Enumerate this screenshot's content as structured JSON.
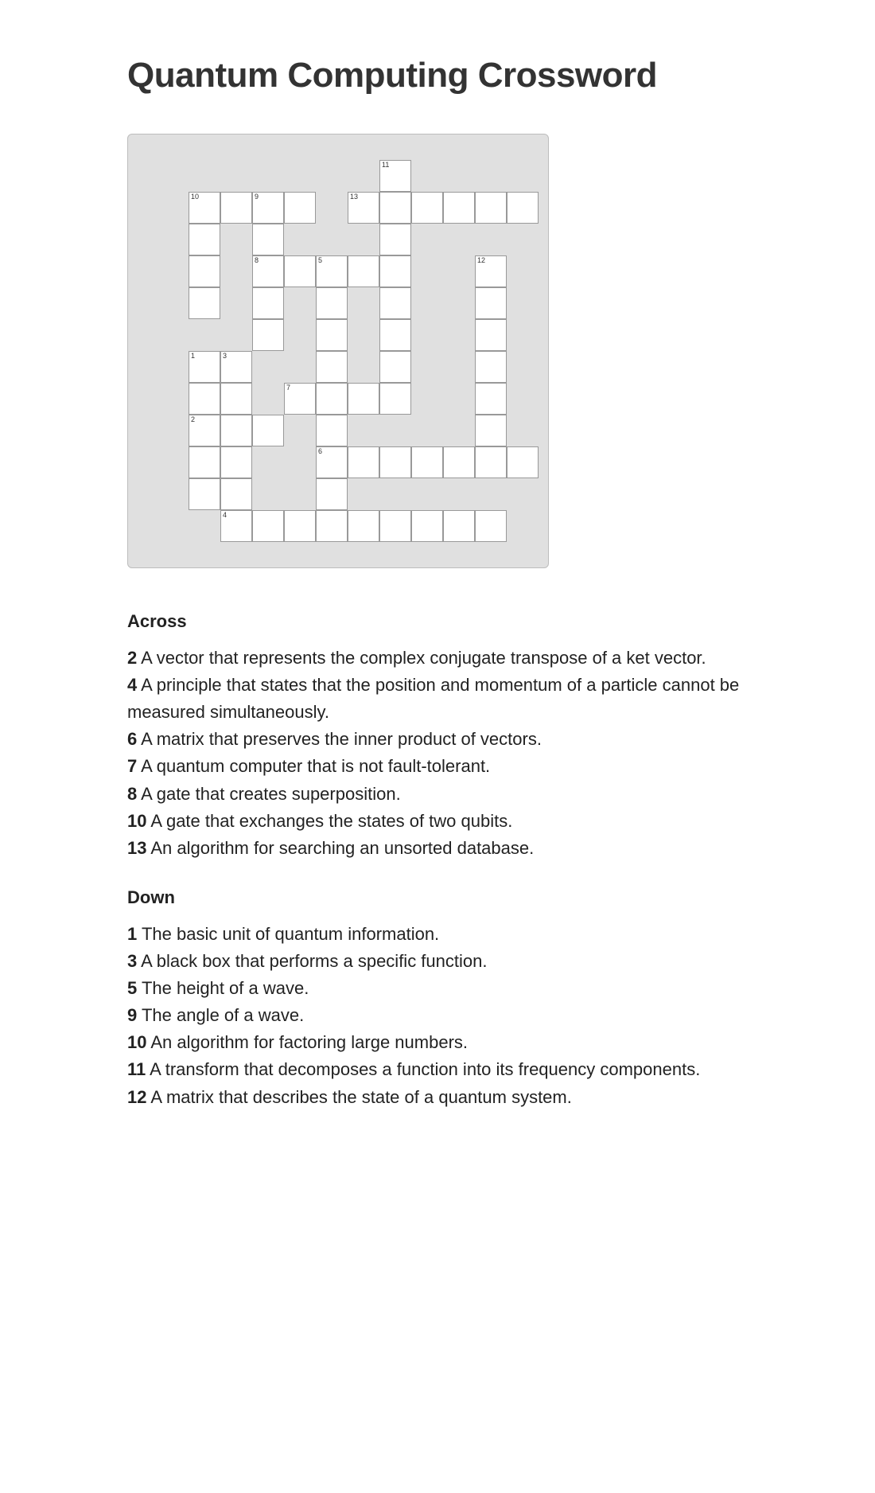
{
  "title": "Quantum Computing Crossword",
  "grid": {
    "cell_size": 40,
    "width_cells": 12,
    "height_cells": 12,
    "wrap_bg": "#e0e0e0",
    "wrap_border": "#bdbdbd",
    "cell_bg": "#ffffff",
    "cell_border": "#999999",
    "num_fontsize": 9,
    "cells": [
      {
        "r": 0,
        "c": 7,
        "n": "11"
      },
      {
        "r": 1,
        "c": 1,
        "n": "10"
      },
      {
        "r": 1,
        "c": 2
      },
      {
        "r": 1,
        "c": 3,
        "n": "9"
      },
      {
        "r": 1,
        "c": 4
      },
      {
        "r": 1,
        "c": 6,
        "n": "13"
      },
      {
        "r": 1,
        "c": 7
      },
      {
        "r": 1,
        "c": 8
      },
      {
        "r": 1,
        "c": 9
      },
      {
        "r": 1,
        "c": 10
      },
      {
        "r": 1,
        "c": 11
      },
      {
        "r": 2,
        "c": 1
      },
      {
        "r": 2,
        "c": 3
      },
      {
        "r": 2,
        "c": 7
      },
      {
        "r": 3,
        "c": 1
      },
      {
        "r": 3,
        "c": 3,
        "n": "8"
      },
      {
        "r": 3,
        "c": 4
      },
      {
        "r": 3,
        "c": 5,
        "n": "5"
      },
      {
        "r": 3,
        "c": 6
      },
      {
        "r": 3,
        "c": 7
      },
      {
        "r": 3,
        "c": 10,
        "n": "12"
      },
      {
        "r": 4,
        "c": 1
      },
      {
        "r": 4,
        "c": 3
      },
      {
        "r": 4,
        "c": 5
      },
      {
        "r": 4,
        "c": 7
      },
      {
        "r": 4,
        "c": 10
      },
      {
        "r": 5,
        "c": 3
      },
      {
        "r": 5,
        "c": 5
      },
      {
        "r": 5,
        "c": 7
      },
      {
        "r": 5,
        "c": 10
      },
      {
        "r": 6,
        "c": 1,
        "n": "1"
      },
      {
        "r": 6,
        "c": 2,
        "n": "3"
      },
      {
        "r": 6,
        "c": 5
      },
      {
        "r": 6,
        "c": 7
      },
      {
        "r": 6,
        "c": 10
      },
      {
        "r": 7,
        "c": 1
      },
      {
        "r": 7,
        "c": 2
      },
      {
        "r": 7,
        "c": 4,
        "n": "7"
      },
      {
        "r": 7,
        "c": 5
      },
      {
        "r": 7,
        "c": 6
      },
      {
        "r": 7,
        "c": 7
      },
      {
        "r": 7,
        "c": 10
      },
      {
        "r": 8,
        "c": 1,
        "n": "2"
      },
      {
        "r": 8,
        "c": 2
      },
      {
        "r": 8,
        "c": 3
      },
      {
        "r": 8,
        "c": 5
      },
      {
        "r": 8,
        "c": 10
      },
      {
        "r": 9,
        "c": 1
      },
      {
        "r": 9,
        "c": 2
      },
      {
        "r": 9,
        "c": 5,
        "n": "6"
      },
      {
        "r": 9,
        "c": 6
      },
      {
        "r": 9,
        "c": 7
      },
      {
        "r": 9,
        "c": 8
      },
      {
        "r": 9,
        "c": 9
      },
      {
        "r": 9,
        "c": 10
      },
      {
        "r": 9,
        "c": 11
      },
      {
        "r": 10,
        "c": 1
      },
      {
        "r": 10,
        "c": 2
      },
      {
        "r": 10,
        "c": 5
      },
      {
        "r": 11,
        "c": 2,
        "n": "4"
      },
      {
        "r": 11,
        "c": 3
      },
      {
        "r": 11,
        "c": 4
      },
      {
        "r": 11,
        "c": 5
      },
      {
        "r": 11,
        "c": 6
      },
      {
        "r": 11,
        "c": 7
      },
      {
        "r": 11,
        "c": 8
      },
      {
        "r": 11,
        "c": 9
      },
      {
        "r": 11,
        "c": 10
      }
    ]
  },
  "clues": {
    "across_heading": "Across",
    "down_heading": "Down",
    "across": [
      {
        "n": "2",
        "text": "A vector that represents the complex conjugate transpose of a ket vector."
      },
      {
        "n": "4",
        "text": "A principle that states that the position and momentum of a particle cannot be measured simultaneously."
      },
      {
        "n": "6",
        "text": "A matrix that preserves the inner product of vectors."
      },
      {
        "n": "7",
        "text": "A quantum computer that is not fault-tolerant."
      },
      {
        "n": "8",
        "text": "A gate that creates superposition."
      },
      {
        "n": "10",
        "text": "A gate that exchanges the states of two qubits."
      },
      {
        "n": "13",
        "text": "An algorithm for searching an unsorted database."
      }
    ],
    "down": [
      {
        "n": "1",
        "text": "The basic unit of quantum information."
      },
      {
        "n": "3",
        "text": "A black box that performs a specific function."
      },
      {
        "n": "5",
        "text": "The height of a wave."
      },
      {
        "n": "9",
        "text": "The angle of a wave."
      },
      {
        "n": "10",
        "text": "An algorithm for factoring large numbers."
      },
      {
        "n": "11",
        "text": "A transform that decomposes a function into its frequency components."
      },
      {
        "n": "12",
        "text": "A matrix that describes the state of a quantum system."
      }
    ]
  },
  "typography": {
    "title_fontsize": 44,
    "body_fontsize": 22,
    "heading_fontsize": 22,
    "text_color": "#222222",
    "font_family": "Helvetica Neue, Helvetica, Arial, sans-serif"
  }
}
